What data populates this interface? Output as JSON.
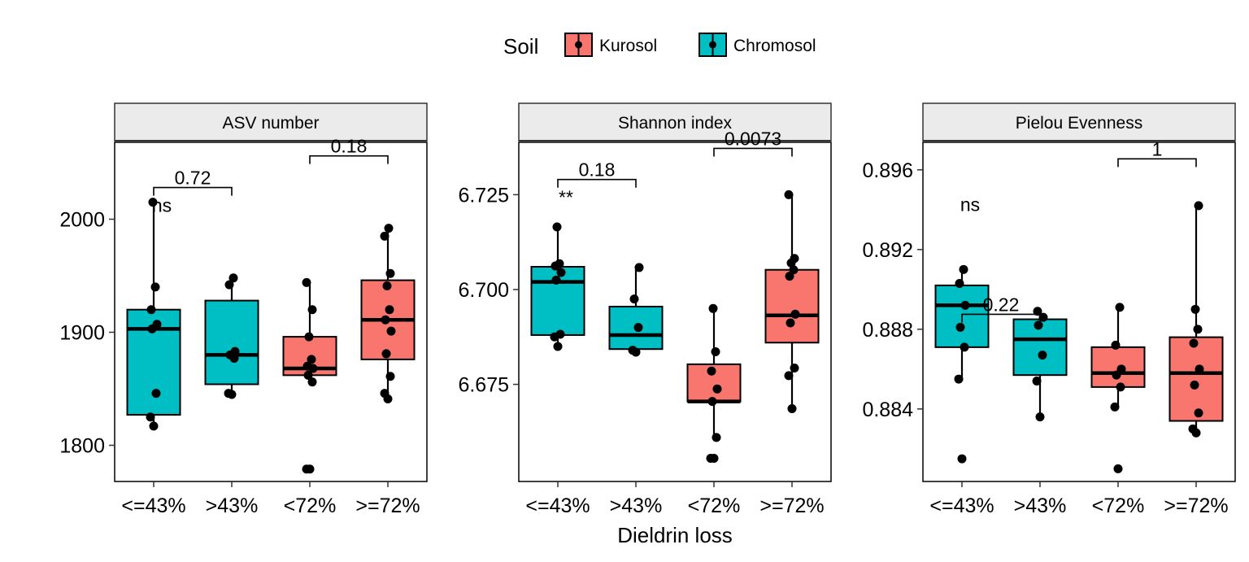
{
  "legend": {
    "title": "Soil",
    "items": [
      {
        "label": "Kurosol",
        "color": "#f8766d"
      },
      {
        "label": "Chromosol",
        "color": "#00bfc4"
      }
    ]
  },
  "x_axis_title": "Dieldrin loss",
  "chart_data": [
    {
      "type": "box",
      "panel_title": "ASV number",
      "categories": [
        "<=43%",
        ">43%",
        "<72%",
        ">=72%"
      ],
      "ylim": [
        1768,
        2068
      ],
      "yticks": [
        "1800",
        "1900",
        "2000"
      ],
      "ytick_values": [
        1800,
        1900,
        2000
      ],
      "boxes": [
        {
          "category": "<=43%",
          "soil": "Chromosol",
          "q1": 1827,
          "median": 1903,
          "q3": 1920,
          "whisker_low": 1817,
          "whisker_high": 2015,
          "points": [
            1817,
            1825,
            1846,
            1903,
            1907,
            1920,
            1940,
            2015
          ]
        },
        {
          "category": ">43%",
          "soil": "Chromosol",
          "q1": 1854,
          "median": 1880,
          "q3": 1928,
          "whisker_low": 1845,
          "whisker_high": 1948,
          "points": [
            1845,
            1846,
            1877,
            1880,
            1883,
            1942,
            1948
          ]
        },
        {
          "category": "<72%",
          "soil": "Kurosol",
          "q1": 1862,
          "median": 1868,
          "q3": 1896,
          "whisker_low": 1856,
          "whisker_high": 1944,
          "points": [
            1779,
            1779,
            1856,
            1862,
            1868,
            1870,
            1876,
            1896,
            1920,
            1944
          ]
        },
        {
          "category": ">=72%",
          "soil": "Kurosol",
          "q1": 1876,
          "median": 1911,
          "q3": 1946,
          "whisker_low": 1841,
          "whisker_high": 1992,
          "points": [
            1841,
            1846,
            1861,
            1881,
            1901,
            1911,
            1920,
            1941,
            1952,
            1985,
            1992
          ]
        }
      ],
      "comparisons": [
        {
          "from": "<=43%",
          "to": ">43%",
          "label": "0.72",
          "y": 2028
        },
        {
          "from": "<72%",
          "to": ">=72%",
          "label": "0.18",
          "y": 2056
        }
      ],
      "significance": [
        {
          "category": "<=43%",
          "label": "ns",
          "y": 2013
        }
      ]
    },
    {
      "type": "box",
      "panel_title": "Shannon index",
      "categories": [
        "<=43%",
        ">43%",
        "<72%",
        ">=72%"
      ],
      "ylim": [
        6.6494,
        6.7388
      ],
      "yticks": [
        "6.675",
        "6.700",
        "6.725"
      ],
      "ytick_values": [
        6.675,
        6.7,
        6.725
      ],
      "boxes": [
        {
          "category": "<=43%",
          "soil": "Chromosol",
          "q1": 6.688,
          "median": 6.702,
          "q3": 6.706,
          "whisker_low": 6.685,
          "whisker_high": 6.7165,
          "points": [
            6.685,
            6.6875,
            6.6882,
            6.7025,
            6.7045,
            6.7062,
            6.7068,
            6.7165
          ]
        },
        {
          "category": ">43%",
          "soil": "Chromosol",
          "q1": 6.6843,
          "median": 6.688,
          "q3": 6.6955,
          "whisker_low": 6.6835,
          "whisker_high": 6.7058,
          "points": [
            6.6835,
            6.684,
            6.69,
            6.6975,
            6.7058
          ]
        },
        {
          "category": "<72%",
          "soil": "Kurosol",
          "q1": 6.6705,
          "median": 6.6705,
          "q3": 6.6803,
          "whisker_low": 6.661,
          "whisker_high": 6.695,
          "points": [
            6.6555,
            6.6555,
            6.661,
            6.6705,
            6.6738,
            6.6785,
            6.6836,
            6.695
          ]
        },
        {
          "category": ">=72%",
          "soil": "Kurosol",
          "q1": 6.686,
          "median": 6.6932,
          "q3": 6.7052,
          "whisker_low": 6.6686,
          "whisker_high": 6.725,
          "points": [
            6.6686,
            6.6773,
            6.6793,
            6.6912,
            6.6935,
            6.7035,
            6.7052,
            6.707,
            6.7082,
            6.725
          ]
        }
      ],
      "comparisons": [
        {
          "from": "<=43%",
          "to": ">43%",
          "label": "0.18",
          "y": 6.729
        },
        {
          "from": "<72%",
          "to": ">=72%",
          "label": "0.0073",
          "y": 6.7372
        }
      ],
      "significance": [
        {
          "category": "<=43%",
          "label": "**",
          "y": 6.7245
        }
      ]
    },
    {
      "type": "box",
      "panel_title": "Pielou Evenness",
      "categories": [
        "<=43%",
        ">43%",
        "<72%",
        ">=72%"
      ],
      "ylim": [
        0.88036,
        0.89738
      ],
      "yticks": [
        "0.884",
        "0.888",
        "0.892",
        "0.896"
      ],
      "ytick_values": [
        0.884,
        0.888,
        0.892,
        0.896
      ],
      "boxes": [
        {
          "category": "<=43%",
          "soil": "Chromosol",
          "q1": 0.8871,
          "median": 0.8892,
          "q3": 0.8902,
          "whisker_low": 0.8855,
          "whisker_high": 0.891,
          "points": [
            0.8815,
            0.8855,
            0.8871,
            0.8881,
            0.8892,
            0.8903,
            0.891
          ]
        },
        {
          "category": ">43%",
          "soil": "Chromosol",
          "q1": 0.8857,
          "median": 0.8875,
          "q3": 0.8885,
          "whisker_low": 0.8836,
          "whisker_high": 0.8889,
          "points": [
            0.8836,
            0.8854,
            0.8867,
            0.8882,
            0.8886,
            0.8889
          ]
        },
        {
          "category": "<72%",
          "soil": "Kurosol",
          "q1": 0.8851,
          "median": 0.8858,
          "q3": 0.8871,
          "whisker_low": 0.8841,
          "whisker_high": 0.8891,
          "points": [
            0.881,
            0.8841,
            0.8851,
            0.8857,
            0.886,
            0.8872,
            0.8891
          ]
        },
        {
          "category": ">=72%",
          "soil": "Kurosol",
          "q1": 0.8834,
          "median": 0.8858,
          "q3": 0.8876,
          "whisker_low": 0.8828,
          "whisker_high": 0.8942,
          "points": [
            0.8828,
            0.883,
            0.8838,
            0.8852,
            0.886,
            0.8873,
            0.888,
            0.889,
            0.8942
          ]
        }
      ],
      "comparisons": [
        {
          "from": "<=43%",
          "to": ">43%",
          "label": "0.22",
          "y": 0.88875
        },
        {
          "from": "<72%",
          "to": ">=72%",
          "label": "1",
          "y": 0.89655
        }
      ],
      "significance": [
        {
          "category": "<=43%",
          "label": "ns",
          "y": 0.8943
        }
      ]
    }
  ]
}
